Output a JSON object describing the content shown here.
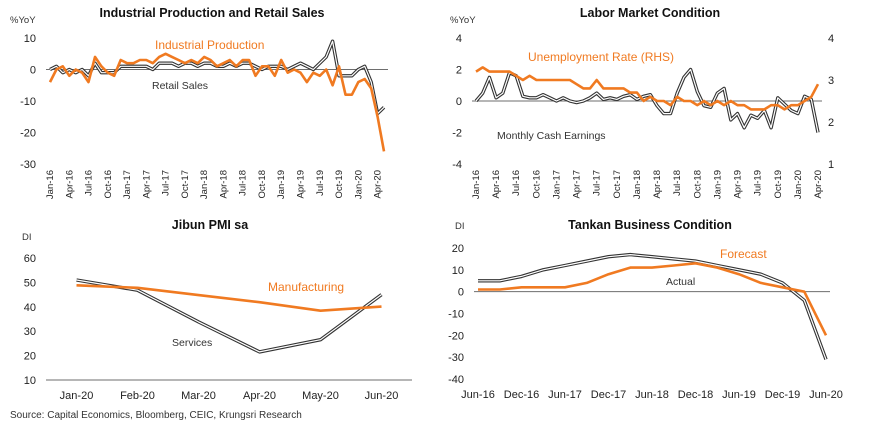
{
  "source": "Source: Capital Economics, Bloomberg, CEIC, Krungsri Research",
  "colors": {
    "orange": "#F07A21",
    "grey": "#7F7F7F",
    "dark": "#333333",
    "axis": "#555555"
  },
  "chart_data": [
    {
      "type": "line",
      "title": "Industrial Production and Retail Sales",
      "ylabel": "%YoY",
      "ylim": [
        -30,
        10
      ],
      "yticks": [
        10,
        0,
        -10,
        -20,
        -30
      ],
      "xtick_labels": [
        "Jan-16",
        "Apr-16",
        "Jul-16",
        "Oct-16",
        "Jan-17",
        "Apr-17",
        "Jul-17",
        "Oct-17",
        "Jan-18",
        "Apr-18",
        "Jul-18",
        "Oct-18",
        "Jan-19",
        "Apr-19",
        "Jul-19",
        "Oct-19",
        "Jan-20",
        "Apr-20"
      ],
      "x": [
        "Jan-16",
        "Feb-16",
        "Mar-16",
        "Apr-16",
        "May-16",
        "Jun-16",
        "Jul-16",
        "Aug-16",
        "Sep-16",
        "Oct-16",
        "Nov-16",
        "Dec-16",
        "Jan-17",
        "Feb-17",
        "Mar-17",
        "Apr-17",
        "May-17",
        "Jun-17",
        "Jul-17",
        "Aug-17",
        "Sep-17",
        "Oct-17",
        "Nov-17",
        "Dec-17",
        "Jan-18",
        "Feb-18",
        "Mar-18",
        "Apr-18",
        "May-18",
        "Jun-18",
        "Jul-18",
        "Aug-18",
        "Sep-18",
        "Oct-18",
        "Nov-18",
        "Dec-18",
        "Jan-19",
        "Feb-19",
        "Mar-19",
        "Apr-19",
        "May-19",
        "Jun-19",
        "Jul-19",
        "Aug-19",
        "Sep-19",
        "Oct-19",
        "Nov-19",
        "Dec-19",
        "Jan-20",
        "Feb-20",
        "Mar-20",
        "Apr-20",
        "May-20"
      ],
      "series": [
        {
          "name": "Industrial Production",
          "label": "Industrial Production",
          "color": "orange",
          "width": 2.6,
          "values": [
            -4,
            0,
            1,
            -2,
            0,
            -1,
            -4,
            4,
            1,
            -1,
            -2,
            3,
            2,
            2,
            3,
            3,
            2,
            4,
            5,
            4,
            3,
            2,
            3,
            2,
            4,
            3,
            1,
            2,
            3,
            1,
            3,
            3,
            -2,
            1,
            1,
            -2,
            3,
            -1,
            0,
            -1,
            -4,
            -1,
            -2,
            0,
            -5,
            1,
            -8,
            -8,
            -4,
            -3,
            -6,
            -15,
            -26
          ]
        },
        {
          "name": "Retail Sales",
          "label": "Retail Sales",
          "color": "dark",
          "width": 1.5,
          "double": true,
          "values": [
            0,
            1,
            -1,
            0,
            -1,
            0,
            -2,
            2,
            -1,
            -1,
            -1,
            1,
            1,
            1,
            1,
            1,
            0,
            2,
            2,
            2,
            1,
            2,
            2,
            1,
            2,
            2,
            1,
            1,
            2,
            1,
            2,
            2,
            1,
            0,
            1,
            1,
            1,
            0,
            1,
            2,
            1,
            0,
            2,
            4,
            9,
            -2,
            -2,
            -2,
            0,
            1,
            -4,
            -14,
            -12
          ]
        }
      ]
    },
    {
      "type": "line",
      "title": "Labor Market Condition",
      "ylabel": "%YoY",
      "ylim": [
        -4,
        4
      ],
      "yticks": [
        4,
        2,
        0,
        -2,
        -4
      ],
      "y2lim": [
        1,
        4
      ],
      "y2ticks": [
        4,
        3,
        2,
        1
      ],
      "xtick_labels": [
        "Jan-16",
        "Apr-16",
        "Jul-16",
        "Oct-16",
        "Jan-17",
        "Apr-17",
        "Jul-17",
        "Oct-17",
        "Jan-18",
        "Apr-18",
        "Jul-18",
        "Oct-18",
        "Jan-19",
        "Apr-19",
        "Jul-19",
        "Oct-19",
        "Jan-20",
        "Apr-20"
      ],
      "x": [
        "Jan-16",
        "Feb-16",
        "Mar-16",
        "Apr-16",
        "May-16",
        "Jun-16",
        "Jul-16",
        "Aug-16",
        "Sep-16",
        "Oct-16",
        "Nov-16",
        "Dec-16",
        "Jan-17",
        "Feb-17",
        "Mar-17",
        "Apr-17",
        "May-17",
        "Jun-17",
        "Jul-17",
        "Aug-17",
        "Sep-17",
        "Oct-17",
        "Nov-17",
        "Dec-17",
        "Jan-18",
        "Feb-18",
        "Mar-18",
        "Apr-18",
        "May-18",
        "Jun-18",
        "Jul-18",
        "Aug-18",
        "Sep-18",
        "Oct-18",
        "Nov-18",
        "Dec-18",
        "Jan-19",
        "Feb-19",
        "Mar-19",
        "Apr-19",
        "May-19",
        "Jun-19",
        "Jul-19",
        "Aug-19",
        "Sep-19",
        "Oct-19",
        "Nov-19",
        "Dec-19",
        "Jan-20",
        "Feb-20",
        "Mar-20",
        "Apr-20"
      ],
      "series": [
        {
          "name": "Unemployment Rate (RHS)",
          "label": "Unemployment Rate (RHS)",
          "axis": "right",
          "color": "orange",
          "width": 2.6,
          "values": [
            3.2,
            3.3,
            3.2,
            3.2,
            3.2,
            3.2,
            3.1,
            3.0,
            3.1,
            3.0,
            3.0,
            3.0,
            3.0,
            3.0,
            3.0,
            2.9,
            2.8,
            2.8,
            3.0,
            2.8,
            2.8,
            2.8,
            2.8,
            2.7,
            2.7,
            2.5,
            2.6,
            2.5,
            2.5,
            2.4,
            2.6,
            2.5,
            2.5,
            2.4,
            2.5,
            2.4,
            2.5,
            2.4,
            2.5,
            2.4,
            2.4,
            2.3,
            2.3,
            2.3,
            2.4,
            2.4,
            2.3,
            2.4,
            2.4,
            2.5,
            2.6,
            2.9
          ]
        },
        {
          "name": "Monthly Cash Earnings",
          "label": "Monthly Cash Earnings",
          "axis": "left",
          "color": "dark",
          "width": 1.5,
          "double": true,
          "values": [
            0,
            0.5,
            1.5,
            0.2,
            0.5,
            1.8,
            1.6,
            0.3,
            0.2,
            0.2,
            0.4,
            0.2,
            0,
            0.2,
            0,
            -0.1,
            0,
            0.2,
            0.5,
            0.1,
            0.2,
            0.1,
            0.3,
            0.4,
            0.1,
            0.3,
            0.4,
            -0.3,
            -0.8,
            -0.8,
            0.5,
            1.5,
            2.0,
            0.6,
            -0.3,
            -0.4,
            0.5,
            0.8,
            -1.2,
            -0.8,
            -1.7,
            -0.9,
            -1.1,
            -0.6,
            -1.7,
            0.2,
            -0.2,
            -0.6,
            -0.8,
            0.3,
            0.1,
            -2.0
          ]
        }
      ]
    },
    {
      "type": "line",
      "title": "Jibun PMI sa",
      "ylabel": "DI",
      "ylim": [
        10,
        60
      ],
      "yticks": [
        60,
        50,
        40,
        30,
        20,
        10
      ],
      "categories": [
        "Jan-20",
        "Feb-20",
        "Mar-20",
        "Apr-20",
        "May-20",
        "Jun-20"
      ],
      "series": [
        {
          "name": "Manufacturing",
          "label": "Manufacturing",
          "color": "orange",
          "width": 2.6,
          "values": [
            48.8,
            47.8,
            44.8,
            41.9,
            38.4,
            40.1
          ]
        },
        {
          "name": "Services",
          "label": "Services",
          "color": "dark",
          "width": 1.5,
          "double": true,
          "values": [
            51.0,
            46.8,
            33.8,
            21.5,
            26.5,
            45.0
          ]
        }
      ]
    },
    {
      "type": "line",
      "title": "Tankan Business Condition",
      "ylabel": "DI",
      "ylim": [
        -40,
        20
      ],
      "yticks": [
        20,
        10,
        0,
        -10,
        -20,
        -30,
        -40
      ],
      "categories": [
        "Jun-16",
        "Dec-16",
        "Jun-17",
        "Dec-17",
        "Jun-18",
        "Dec-18",
        "Jun-19",
        "Dec-19",
        "Jun-20"
      ],
      "x": [
        "Jun-16",
        "Sep-16",
        "Dec-16",
        "Mar-17",
        "Jun-17",
        "Sep-17",
        "Dec-17",
        "Mar-18",
        "Jun-18",
        "Sep-18",
        "Dec-18",
        "Mar-19",
        "Jun-19",
        "Sep-19",
        "Dec-19",
        "Mar-20",
        "Jun-20"
      ],
      "series": [
        {
          "name": "Forecast",
          "label": "Forecast",
          "color": "orange",
          "width": 2.6,
          "values": [
            1,
            1,
            2,
            2,
            2,
            4,
            8,
            11,
            11,
            12,
            13,
            11,
            8,
            4,
            2,
            0,
            -20
          ]
        },
        {
          "name": "Actual",
          "label": "Actual",
          "color": "dark",
          "width": 1.5,
          "double": true,
          "values": [
            5,
            5,
            7,
            10,
            12,
            14,
            16,
            17,
            16,
            15,
            14,
            12,
            10,
            8,
            4,
            -4,
            -31
          ]
        }
      ]
    }
  ]
}
